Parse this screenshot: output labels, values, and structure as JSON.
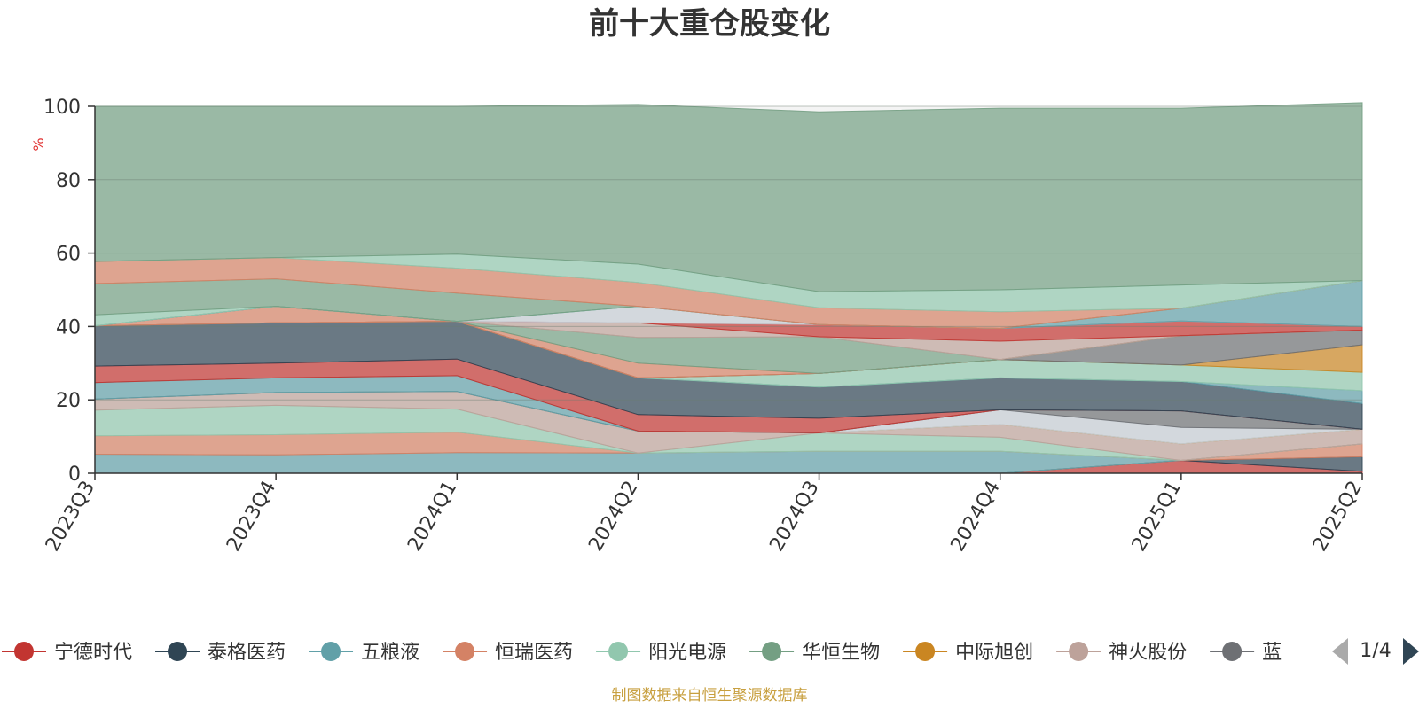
{
  "chart_data": {
    "type": "area",
    "stacked": true,
    "title": "前十大重仓股变化",
    "ylabel": "%",
    "ylim": [
      0,
      100
    ],
    "yticks": [
      0,
      20,
      40,
      60,
      80,
      100
    ],
    "grid": true,
    "categories": [
      "2023Q3",
      "2023Q4",
      "2024Q1",
      "2024Q2",
      "2024Q3",
      "2024Q4",
      "2025Q1",
      "2025Q2"
    ],
    "series": [
      {
        "color": "#c23531",
        "values": [
          0,
          0,
          0,
          0,
          0,
          0,
          3.5,
          0.5
        ]
      },
      {
        "color": "#2f4554",
        "values": [
          0,
          0,
          0,
          0,
          0,
          0,
          0,
          4
        ]
      },
      {
        "color": "#d48265",
        "values": [
          0,
          0,
          0,
          0,
          0,
          0,
          0,
          3.5
        ]
      },
      {
        "color": "#61a0a8",
        "values": [
          5.2,
          5.0,
          5.6,
          5.5,
          6.0,
          6.0,
          0,
          0
        ]
      },
      {
        "color": "#d48265",
        "values": [
          5.0,
          5.5,
          5.6,
          0,
          0,
          0,
          0,
          0
        ]
      },
      {
        "color": "#91c7ae",
        "values": [
          7.0,
          8.0,
          6.3,
          0,
          5.0,
          3.8,
          0,
          0
        ]
      },
      {
        "color": "#bda29a",
        "values": [
          3.0,
          3.5,
          4.8,
          6.0,
          0,
          3.5,
          4.5,
          4.0
        ]
      },
      {
        "color": "#ca8622",
        "values": [
          0,
          0,
          0,
          0,
          0,
          0,
          0,
          0
        ]
      },
      {
        "color": "#c4ccd3",
        "values": [
          0,
          0,
          0,
          0,
          0,
          4.0,
          4.5,
          0
        ]
      },
      {
        "color": "#6e7074",
        "values": [
          0,
          0,
          0,
          0,
          0,
          0,
          4.5,
          0
        ]
      },
      {
        "color": "#61a0a8",
        "values": [
          4.5,
          4.0,
          4.3,
          0,
          0,
          0,
          0,
          0
        ]
      },
      {
        "color": "#c23531",
        "values": [
          4.5,
          4.0,
          4.5,
          4.5,
          4.0,
          0,
          0,
          0
        ]
      },
      {
        "color": "#2f4554",
        "values": [
          11.0,
          11.0,
          10.3,
          10.0,
          8.5,
          8.7,
          8.0,
          7.0
        ]
      },
      {
        "color": "#61a0a8",
        "values": [
          0,
          0,
          0,
          0,
          0,
          0,
          0,
          3.5
        ]
      },
      {
        "color": "#91c7ae",
        "values": [
          0,
          0,
          0,
          0,
          3.7,
          5.0,
          4.5,
          5.0
        ]
      },
      {
        "color": "#ca8622",
        "values": [
          0,
          0,
          0,
          0,
          0,
          0,
          0,
          7.5
        ]
      },
      {
        "color": "#6e7074",
        "values": [
          0,
          0,
          0,
          0,
          0,
          0,
          8.0,
          4.0
        ]
      },
      {
        "color": "#d48265",
        "values": [
          0,
          4.5,
          0,
          4.0,
          0,
          0,
          0,
          0
        ]
      },
      {
        "color": "#749f83",
        "values": [
          0,
          0,
          0,
          7.0,
          10.0,
          0,
          0,
          0
        ]
      },
      {
        "color": "#bda29a",
        "values": [
          0,
          0,
          0,
          4.0,
          0,
          5.0,
          0,
          0
        ]
      },
      {
        "color": "#c23531",
        "values": [
          0,
          0,
          0,
          0,
          3.3,
          3.5,
          4.0,
          1.0
        ]
      },
      {
        "color": "#c4ccd3",
        "values": [
          0,
          0,
          0,
          4.5,
          0,
          0,
          0,
          0
        ]
      },
      {
        "color": "#61a0a8",
        "values": [
          0,
          0,
          0,
          0,
          0,
          0,
          3.5,
          12.5
        ]
      },
      {
        "color": "#91c7ae",
        "values": [
          3.0,
          0,
          0,
          0,
          0,
          0,
          0,
          0
        ]
      },
      {
        "color": "#749f83",
        "values": [
          8.5,
          7.5,
          7.7,
          0,
          0,
          0,
          0,
          0
        ]
      },
      {
        "color": "#d48265",
        "values": [
          6.0,
          5.8,
          6.8,
          6.5,
          4.6,
          4.5,
          0,
          0
        ]
      },
      {
        "color": "#91c7ae",
        "values": [
          0,
          0,
          3.8,
          5.0,
          4.4,
          6.0,
          6.3,
          0
        ]
      },
      {
        "color": "#749f83",
        "values": [
          42.3,
          41.2,
          40.3,
          43.5,
          49.0,
          49.5,
          48.2,
          48.5
        ]
      }
    ],
    "legend": {
      "placement": "bottom",
      "items": [
        {
          "name": "宁德时代",
          "color": "#c23531"
        },
        {
          "name": "泰格医药",
          "color": "#2f4554"
        },
        {
          "name": "五粮液",
          "color": "#61a0a8"
        },
        {
          "name": "恒瑞医药",
          "color": "#d48265"
        },
        {
          "name": "阳光电源",
          "color": "#91c7ae"
        },
        {
          "name": "华恒生物",
          "color": "#749f83"
        },
        {
          "name": "中际旭创",
          "color": "#ca8622"
        },
        {
          "name": "神火股份",
          "color": "#bda29a"
        },
        {
          "name": "蓝",
          "color": "#6e7074"
        }
      ],
      "page": "1/4"
    },
    "source": "制图数据来自恒生聚源数据库"
  }
}
